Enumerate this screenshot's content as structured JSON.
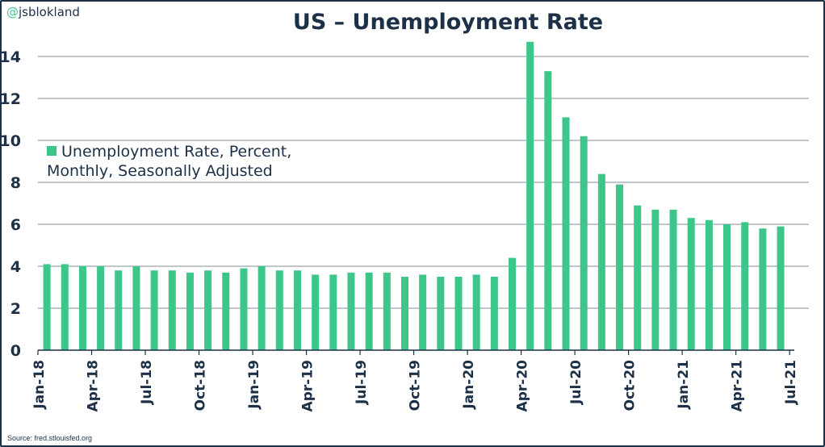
{
  "handle": "@jsblokland",
  "source": "Source: fred.stlouisfed.org",
  "colors": {
    "bar": "#3cc68a",
    "text": "#1c3047",
    "grid": "#9aa3ad"
  },
  "chart_data": {
    "type": "bar",
    "title": "US – Unemployment Rate",
    "legend": [
      "Unemployment Rate, Percent,",
      "Monthly, Seasonally Adjusted"
    ],
    "legend_position": "left-middle",
    "xlabel": "",
    "ylabel": "",
    "ylim": [
      0,
      14
    ],
    "yticks": [
      0,
      2,
      4,
      6,
      8,
      10,
      12,
      14
    ],
    "grid": true,
    "xtick_labels": [
      "Jan-18",
      "Apr-18",
      "Jul-18",
      "Oct-18",
      "Jan-19",
      "Apr-19",
      "Jul-19",
      "Oct-19",
      "Jan-20",
      "Apr-20",
      "Jul-20",
      "Oct-20",
      "Jan-21",
      "Apr-21",
      "Jul-21"
    ],
    "start_month": "Jan-18",
    "values": [
      4.1,
      4.1,
      4.0,
      4.0,
      3.8,
      4.0,
      3.8,
      3.8,
      3.7,
      3.8,
      3.7,
      3.9,
      4.0,
      3.8,
      3.8,
      3.6,
      3.6,
      3.7,
      3.7,
      3.7,
      3.5,
      3.6,
      3.5,
      3.5,
      3.6,
      3.5,
      4.4,
      14.7,
      13.3,
      11.1,
      10.2,
      8.4,
      7.9,
      6.9,
      6.7,
      6.7,
      6.3,
      6.2,
      6.0,
      6.1,
      5.8,
      5.9
    ]
  }
}
